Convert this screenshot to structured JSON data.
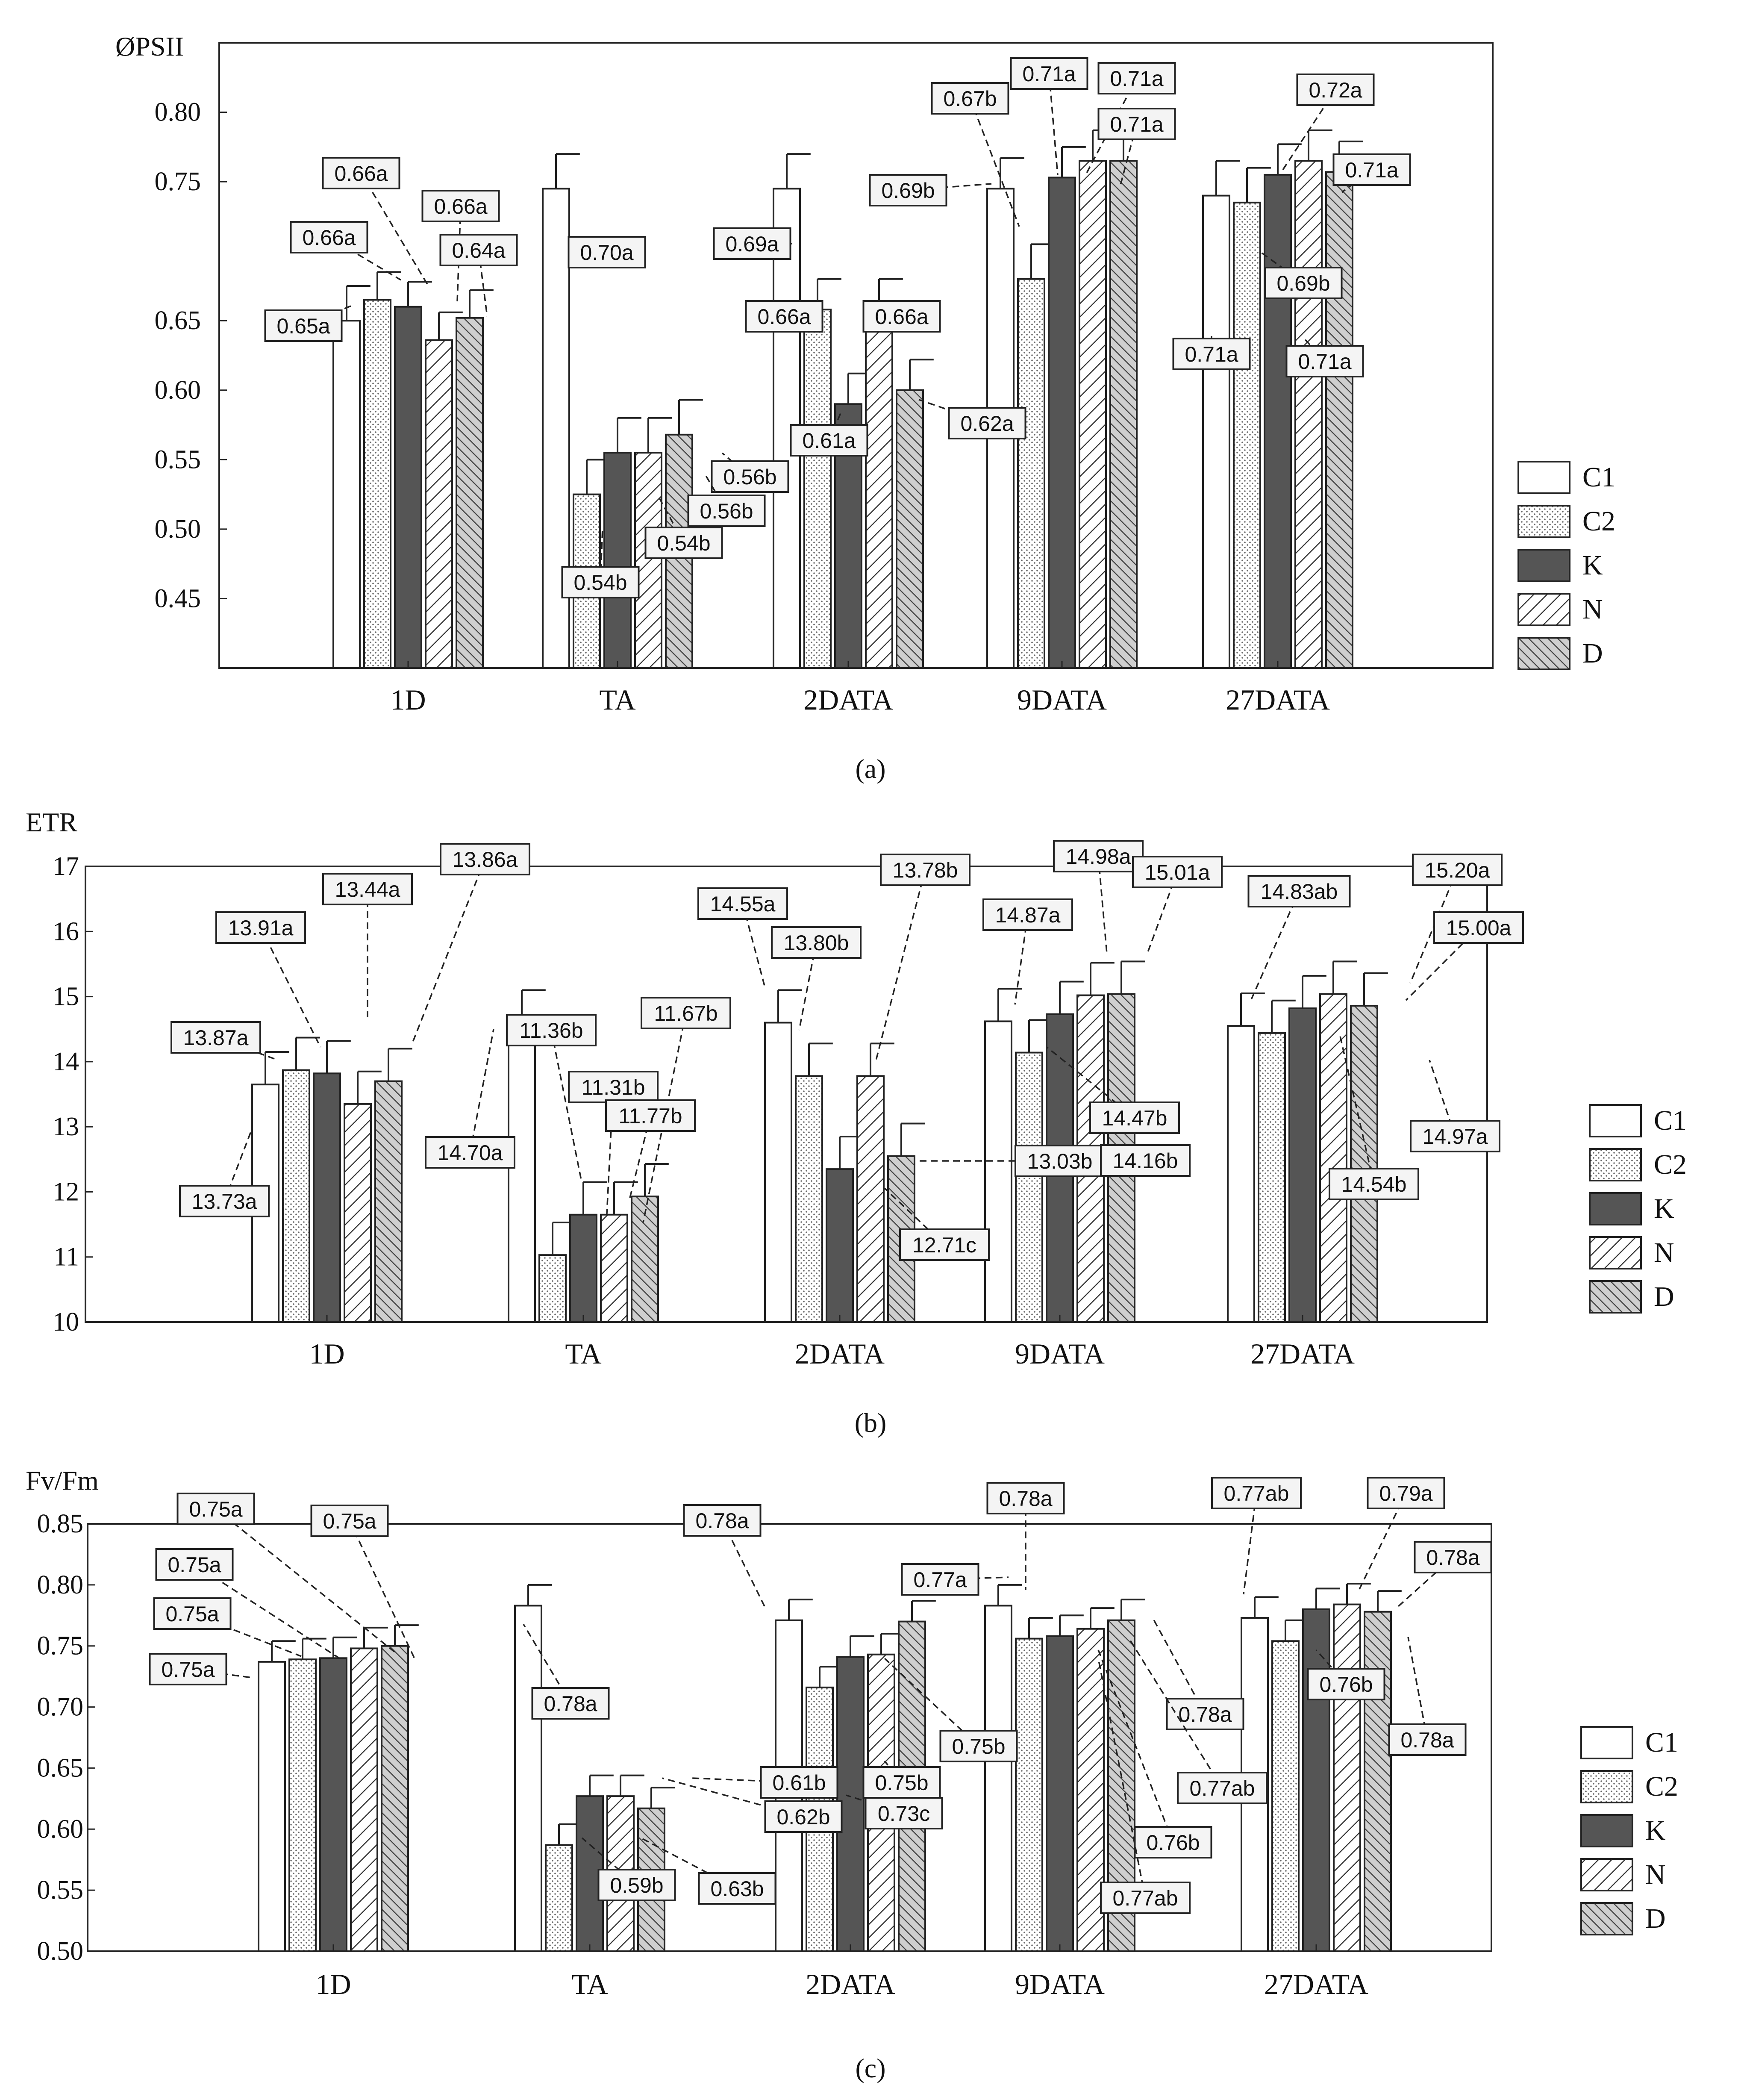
{
  "figure": {
    "legend": [
      "C1",
      "C2",
      "K",
      "N",
      "D"
    ],
    "series_fills": [
      "#ffffff",
      "url(#p-c2)",
      "#555555",
      "url(#p-n)",
      "url(#p-d)"
    ]
  },
  "chart_data": [
    {
      "type": "bar",
      "caption": "(a)",
      "ylabel": "ØPSII",
      "ylim": [
        0.4,
        0.85
      ],
      "yticks": [
        "0.80",
        "0.75",
        "0.65",
        "0.60",
        "0.55",
        "0.50",
        "0.45"
      ],
      "categories": [
        "1D",
        "TA",
        "2DATA",
        "9DATA",
        "27DATA"
      ],
      "series": [
        {
          "name": "C1",
          "values": [
            0.65,
            0.745,
            0.745,
            0.745,
            0.74
          ],
          "errors": [
            0.025,
            0.025,
            0.025,
            0.022,
            0.025
          ]
        },
        {
          "name": "C2",
          "values": [
            0.665,
            0.525,
            0.658,
            0.68,
            0.735
          ],
          "errors": [
            0.02,
            0.025,
            0.022,
            0.025,
            0.025
          ]
        },
        {
          "name": "K",
          "values": [
            0.66,
            0.555,
            0.59,
            0.753,
            0.755
          ],
          "errors": [
            0.018,
            0.025,
            0.022,
            0.022,
            0.022
          ]
        },
        {
          "name": "N",
          "values": [
            0.636,
            0.555,
            0.658,
            0.765,
            0.765
          ],
          "errors": [
            0.02,
            0.025,
            0.022,
            0.022,
            0.022
          ]
        },
        {
          "name": "D",
          "values": [
            0.652,
            0.568,
            0.6,
            0.765,
            0.757
          ],
          "errors": [
            0.02,
            0.025,
            0.022,
            0.022,
            0.022
          ]
        }
      ],
      "annotations": [
        "0.65a",
        "0.66a",
        "0.66a",
        "0.66a",
        "0.64a",
        "0.70a",
        "0.54b",
        "0.54b",
        "0.56b",
        "0.56b",
        "0.69a",
        "0.66a",
        "0.61a",
        "0.66a",
        "0.62a",
        "0.69b",
        "0.67b",
        "0.71a",
        "0.71a",
        "0.71a",
        "0.71a",
        "0.72a",
        "0.69b",
        "0.71a",
        "0.71a"
      ]
    },
    {
      "type": "bar",
      "caption": "(b)",
      "ylabel": "ETR",
      "ylim": [
        10,
        17
      ],
      "yticks": [
        "17",
        "16",
        "15",
        "14",
        "13",
        "12",
        "11",
        "10"
      ],
      "categories": [
        "1D",
        "TA",
        "2DATA",
        "9DATA",
        "27DATA"
      ],
      "series": [
        {
          "name": "C1",
          "values": [
            13.65,
            14.6,
            14.6,
            14.62,
            14.55
          ],
          "errors": [
            0.5,
            0.5,
            0.5,
            0.5,
            0.5
          ]
        },
        {
          "name": "C2",
          "values": [
            13.87,
            11.03,
            13.78,
            14.14,
            14.44
          ],
          "errors": [
            0.5,
            0.5,
            0.5,
            0.5,
            0.5
          ]
        },
        {
          "name": "K",
          "values": [
            13.82,
            11.65,
            12.35,
            14.73,
            14.82
          ],
          "errors": [
            0.5,
            0.5,
            0.5,
            0.5,
            0.5
          ]
        },
        {
          "name": "N",
          "values": [
            13.35,
            11.65,
            13.78,
            15.02,
            15.04
          ],
          "errors": [
            0.5,
            0.5,
            0.5,
            0.5,
            0.5
          ]
        },
        {
          "name": "D",
          "values": [
            13.7,
            11.93,
            12.55,
            15.04,
            14.86
          ],
          "errors": [
            0.5,
            0.5,
            0.5,
            0.5,
            0.5
          ]
        }
      ],
      "annotations": [
        "13.73a",
        "13.87a",
        "13.91a",
        "13.44a",
        "13.86a",
        "14.70a",
        "11.36b",
        "11.31b",
        "11.67b",
        "11.77b",
        "14.55a",
        "13.80b",
        "13.78b",
        "12.71c",
        "13.03b",
        "14.87a",
        "14.98a",
        "15.01a",
        "14.47b",
        "14.16b",
        "14.83ab",
        "15.20a",
        "15.00a",
        "14.54b",
        "14.97a"
      ]
    },
    {
      "type": "bar",
      "caption": "(c)",
      "ylabel": "Fv/Fm",
      "ylim": [
        0.5,
        0.85
      ],
      "yticks": [
        "0.85",
        "0.80",
        "0.75",
        "0.70",
        "0.65",
        "0.60",
        "0.55",
        "0.50"
      ],
      "categories": [
        "1D",
        "TA",
        "2DATA",
        "9DATA",
        "27DATA"
      ],
      "series": [
        {
          "name": "C1",
          "values": [
            0.737,
            0.783,
            0.771,
            0.783,
            0.773
          ],
          "errors": [
            0.017,
            0.017,
            0.017,
            0.017,
            0.017
          ]
        },
        {
          "name": "C2",
          "values": [
            0.739,
            0.587,
            0.716,
            0.756,
            0.754
          ],
          "errors": [
            0.017,
            0.017,
            0.017,
            0.017,
            0.017
          ]
        },
        {
          "name": "K",
          "values": [
            0.74,
            0.627,
            0.741,
            0.758,
            0.78
          ],
          "errors": [
            0.017,
            0.017,
            0.017,
            0.017,
            0.017
          ]
        },
        {
          "name": "N",
          "values": [
            0.748,
            0.627,
            0.743,
            0.764,
            0.784
          ],
          "errors": [
            0.017,
            0.017,
            0.017,
            0.017,
            0.017
          ]
        },
        {
          "name": "D",
          "values": [
            0.75,
            0.617,
            0.77,
            0.771,
            0.778
          ],
          "errors": [
            0.017,
            0.017,
            0.017,
            0.017,
            0.017
          ]
        }
      ],
      "annotations": [
        "0.75a",
        "0.75a",
        "0.75a",
        "0.75a",
        "0.75a",
        "0.78a",
        "0.59b",
        "0.63b",
        "0.62b",
        "0.61b",
        "0.78a",
        "0.75b",
        "0.75b",
        "0.73c",
        "0.77a",
        "0.78a",
        "0.78a",
        "0.77ab",
        "0.76b",
        "0.77ab",
        "0.77ab",
        "0.79a",
        "0.78a",
        "0.76b",
        "0.78a"
      ]
    }
  ]
}
